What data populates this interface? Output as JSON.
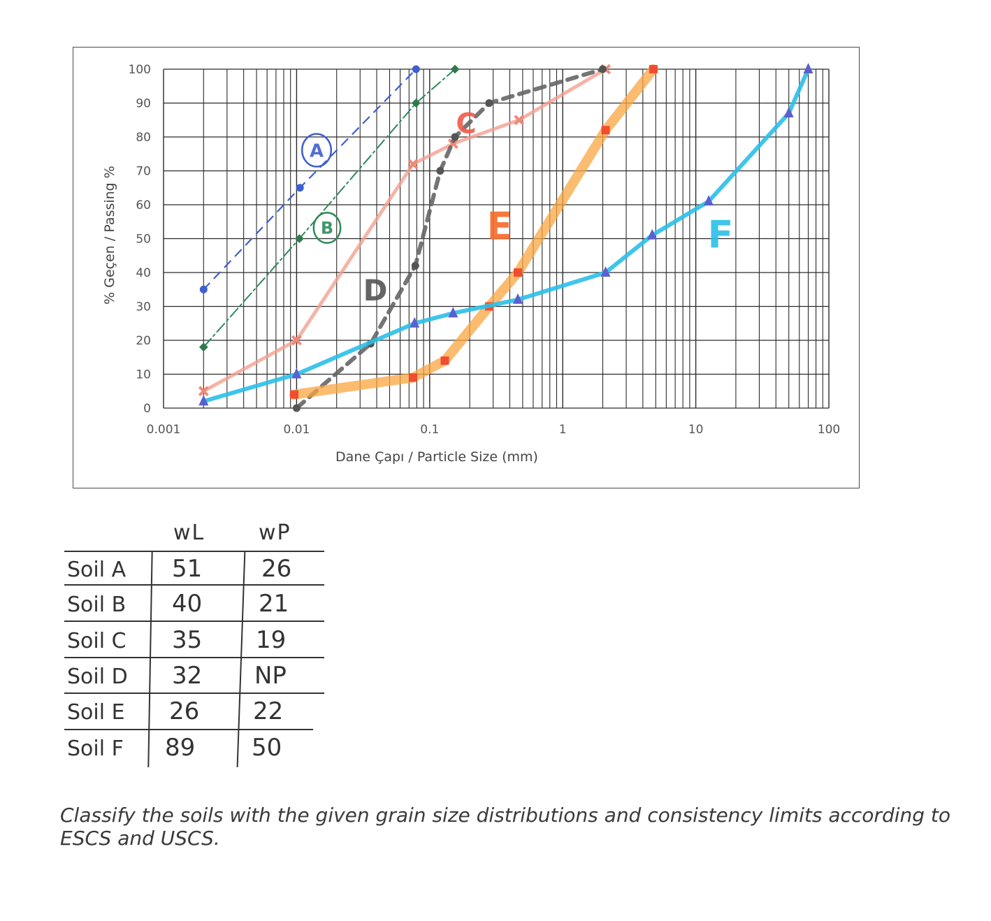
{
  "chart_data": {
    "type": "line",
    "title": "",
    "xlabel": "Dane Çapı / Particle Size (mm)",
    "ylabel": "% Geçen / Passing %",
    "xscale": "log",
    "xlim": [
      0.001,
      100
    ],
    "ylim": [
      0,
      100
    ],
    "x_tick_labels": [
      "0.001",
      "0.01",
      "0.1",
      "1",
      "10",
      "100"
    ],
    "y_tick_labels": [
      "0",
      "10",
      "20",
      "30",
      "40",
      "50",
      "60",
      "70",
      "80",
      "90",
      "100"
    ],
    "grid": true,
    "legend": "inline hand-drawn labels",
    "series": [
      {
        "name": "A",
        "color": "#3f5fd0",
        "style": "dashed",
        "x": [
          0.002,
          0.0106,
          0.079
        ],
        "y": [
          35,
          65,
          100
        ]
      },
      {
        "name": "B",
        "color": "#2e8a5a",
        "style": "dash-dot",
        "x": [
          0.002,
          0.0105,
          0.079,
          0.155
        ],
        "y": [
          18,
          50,
          90,
          100
        ]
      },
      {
        "name": "C",
        "color": "#f2a090",
        "style": "solid",
        "x": [
          0.002,
          0.01,
          0.075,
          0.15,
          0.47,
          2.1
        ],
        "y": [
          5,
          20,
          72,
          78,
          85,
          100
        ]
      },
      {
        "name": "D",
        "color": "#666666",
        "style": "dashed-bold",
        "x": [
          0.01,
          0.036,
          0.078,
          0.12,
          0.155,
          0.28,
          2.0
        ],
        "y": [
          0,
          19,
          42,
          70,
          80,
          90,
          100
        ]
      },
      {
        "name": "E",
        "color": "#f9a640",
        "style": "solid-thick",
        "x": [
          0.0096,
          0.075,
          0.13,
          0.28,
          0.46,
          2.1,
          4.8
        ],
        "y": [
          4,
          9,
          14,
          30,
          40,
          82,
          100
        ]
      },
      {
        "name": "F",
        "color": "#2bbfe8",
        "style": "solid",
        "x": [
          0.002,
          0.01,
          0.077,
          0.15,
          0.46,
          2.1,
          4.7,
          12.5,
          50,
          70
        ],
        "y": [
          2,
          10,
          25,
          28,
          32,
          40,
          51,
          61,
          87,
          100
        ]
      }
    ],
    "annotations": [
      {
        "text": "A",
        "circled": true,
        "color": "#3f5fd0"
      },
      {
        "text": "B",
        "circled": true,
        "color": "#2e8a5a"
      },
      {
        "text": "C",
        "color": "#f05a4a"
      },
      {
        "text": "D",
        "color": "#555555"
      },
      {
        "text": "E",
        "color": "#f56a2a"
      },
      {
        "text": "F",
        "color": "#2bbfe8"
      }
    ]
  },
  "table": {
    "headers": [
      "",
      "wL",
      "wP"
    ],
    "rows": [
      {
        "soil": "Soil A",
        "wL": "51",
        "wP": "26"
      },
      {
        "soil": "Soil B",
        "wL": "40",
        "wP": "21"
      },
      {
        "soil": "Soil C",
        "wL": "35",
        "wP": "19"
      },
      {
        "soil": "Soil D",
        "wL": "32",
        "wP": "NP"
      },
      {
        "soil": "Soil E",
        "wL": "26",
        "wP": "22"
      },
      {
        "soil": "Soil F",
        "wL": "89",
        "wP": "50"
      }
    ]
  },
  "instruction": "Classify the soils with the given grain size distributions and consistency limits according to ESCS and USCS."
}
